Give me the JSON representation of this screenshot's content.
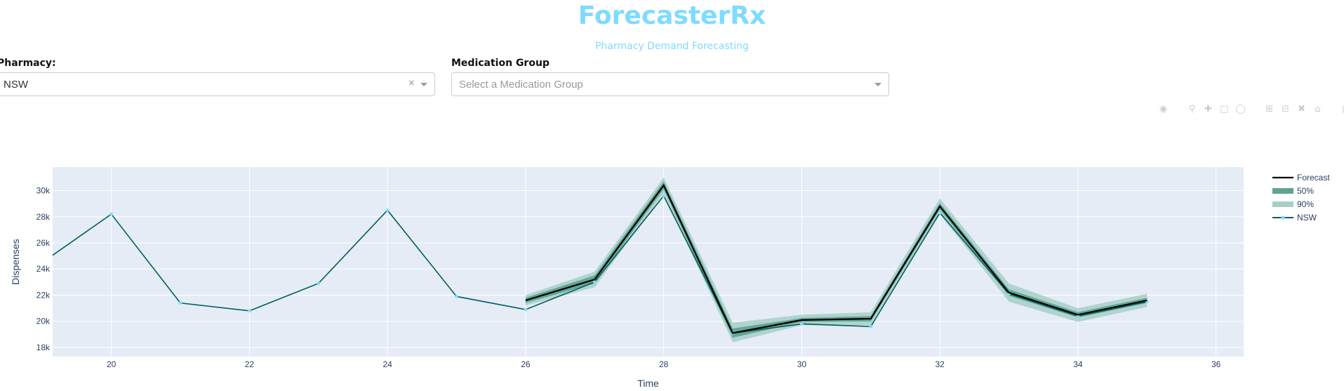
{
  "header": {
    "title": "ForecasterRx",
    "subtitle": "Pharmacy Demand Forecasting"
  },
  "filters": {
    "pharmacy_label": "Pharmacy:",
    "pharmacy_value": "NSW",
    "clear_glyph": "×",
    "medication_label": "Medication Group",
    "medication_placeholder": "Select a Medication Group"
  },
  "modebar": {
    "icons": [
      "camera-icon",
      "zoom-icon",
      "pan-icon",
      "box-select-icon",
      "lasso-icon",
      "zoom-in-icon",
      "zoom-out-icon",
      "autoscale-icon",
      "reset-axes-icon",
      "plotly-logo-icon"
    ]
  },
  "colors": {
    "plot_bg": "#e5ecf6",
    "grid": "#ffffff",
    "actual_line": "#005f5f",
    "actual_marker": "#7fdbff",
    "forecast_line": "#000000",
    "band_50": "#5fa390",
    "band_90": "#a7cfc8",
    "text": "#2a3f5f",
    "title": "#7fdbff"
  },
  "chart_data": {
    "type": "line",
    "xlabel": "Time",
    "ylabel": "Dispenses",
    "xlim": [
      19.15,
      36.4
    ],
    "ylim": [
      17300,
      31800
    ],
    "x_ticks": [
      20,
      22,
      24,
      26,
      28,
      30,
      32,
      34,
      36
    ],
    "x_tick_labels": [
      "20",
      "22",
      "24",
      "26",
      "28",
      "30",
      "32",
      "34",
      "36"
    ],
    "y_ticks": [
      18000,
      20000,
      22000,
      24000,
      26000,
      28000,
      30000
    ],
    "y_tick_labels": [
      "18k",
      "20k",
      "22k",
      "24k",
      "26k",
      "28k",
      "30k"
    ],
    "grid": true,
    "legend_position": "right",
    "series": [
      {
        "name": "NSW",
        "kind": "actual",
        "x": [
          19,
          20,
          21,
          22,
          23,
          24,
          25,
          26,
          27,
          28,
          29,
          30,
          31,
          32,
          33,
          34,
          35
        ],
        "y": [
          24500,
          28200,
          21400,
          20800,
          22900,
          28500,
          21900,
          20900,
          23000,
          29600,
          19100,
          19800,
          19600,
          28300,
          22100,
          20400,
          21500
        ]
      },
      {
        "name": "Forecast",
        "kind": "forecast",
        "x": [
          26,
          27,
          28,
          29,
          30,
          31,
          32,
          33,
          34,
          35
        ],
        "y": [
          21600,
          23200,
          30400,
          19100,
          20100,
          20200,
          28800,
          22200,
          20500,
          21600
        ]
      },
      {
        "name": "50%",
        "kind": "band",
        "x": [
          26,
          27,
          28,
          29,
          30,
          31,
          32,
          33,
          34,
          35
        ],
        "lower": [
          21400,
          22900,
          30100,
          18750,
          19950,
          20000,
          28550,
          21950,
          20300,
          21400
        ],
        "upper": [
          21800,
          23500,
          30700,
          19450,
          20250,
          20400,
          29050,
          22450,
          20700,
          21800
        ]
      },
      {
        "name": "90%",
        "kind": "band",
        "x": [
          26,
          27,
          28,
          29,
          30,
          31,
          32,
          33,
          34,
          35
        ],
        "lower": [
          21200,
          22600,
          29800,
          18400,
          19700,
          19700,
          28200,
          21500,
          19950,
          21100
        ],
        "upper": [
          22000,
          23800,
          31000,
          19900,
          20500,
          20700,
          29400,
          22900,
          21000,
          22100
        ]
      }
    ]
  }
}
